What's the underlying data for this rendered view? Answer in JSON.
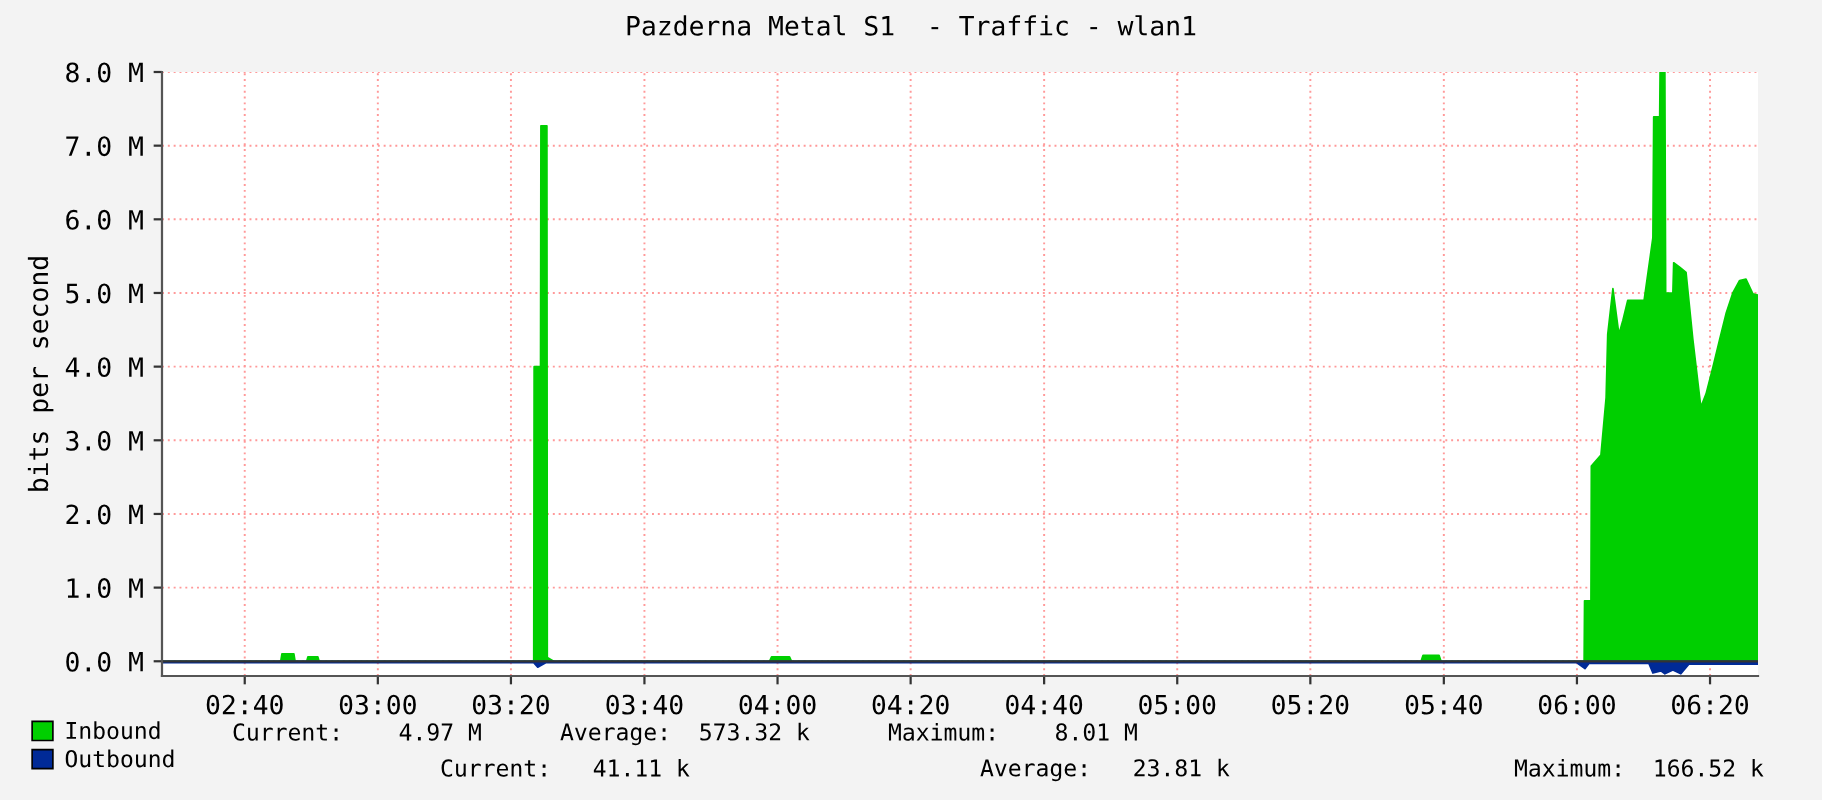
{
  "chart_data": {
    "type": "area",
    "title": "Pazderna Metal S1  - Traffic - wlan1",
    "ylabel": "bits per second",
    "xlim": [
      2.46,
      6.453
    ],
    "ylim": [
      -0.2,
      8.0
    ],
    "xticks": [
      {
        "value": 2.667,
        "label": "02:40"
      },
      {
        "value": 3,
        "label": "03:00"
      },
      {
        "value": 3.333,
        "label": "03:20"
      },
      {
        "value": 3.667,
        "label": "03:40"
      },
      {
        "value": 4,
        "label": "04:00"
      },
      {
        "value": 4.333,
        "label": "04:20"
      },
      {
        "value": 4.667,
        "label": "04:40"
      },
      {
        "value": 5,
        "label": "05:00"
      },
      {
        "value": 5.333,
        "label": "05:20"
      },
      {
        "value": 5.667,
        "label": "05:40"
      },
      {
        "value": 6,
        "label": "06:00"
      },
      {
        "value": 6.333,
        "label": "06:20"
      }
    ],
    "yticks": [
      {
        "value": 0,
        "label": "0.0 M"
      },
      {
        "value": 1,
        "label": "1.0 M"
      },
      {
        "value": 2,
        "label": "2.0 M"
      },
      {
        "value": 3,
        "label": "3.0 M"
      },
      {
        "value": 4,
        "label": "4.0 M"
      },
      {
        "value": 5,
        "label": "5.0 M"
      },
      {
        "value": 6,
        "label": "6.0 M"
      },
      {
        "value": 7,
        "label": "7.0 M"
      },
      {
        "value": 8,
        "label": "8.0 M"
      }
    ],
    "grid": true,
    "legend": "bottom left",
    "series": [
      {
        "name": "Inbound",
        "color": "#00cf00",
        "x": [
          2.46,
          2.757,
          2.76,
          2.79,
          2.793,
          2.822,
          2.825,
          2.85,
          2.853,
          3.39,
          3.391,
          3.407,
          3.408,
          3.423,
          3.424,
          3.44,
          3.98,
          3.985,
          4.03,
          4.035,
          5.61,
          5.615,
          5.655,
          5.66,
          6.018,
          6.019,
          6.035,
          6.036,
          6.06,
          6.073,
          6.077,
          6.09,
          6.105,
          6.115,
          6.127,
          6.168,
          6.19,
          6.192,
          6.207,
          6.208,
          6.22,
          6.222,
          6.24,
          6.242,
          6.257,
          6.273,
          6.29,
          6.31,
          6.323,
          6.34,
          6.357,
          6.373,
          6.39,
          6.407,
          6.423,
          6.44,
          6.453
        ],
        "values": [
          0,
          0,
          0.1,
          0.1,
          0,
          0,
          0.06,
          0.06,
          0,
          0,
          4.0,
          4.0,
          7.27,
          7.27,
          0.05,
          0,
          0,
          0.06,
          0.06,
          0,
          0,
          0.08,
          0.08,
          0,
          0,
          0.82,
          0.82,
          2.65,
          2.8,
          3.58,
          4.44,
          5.06,
          4.44,
          4.63,
          4.9,
          4.9,
          5.75,
          7.39,
          7.39,
          8.0,
          8.0,
          5.0,
          5.0,
          5.41,
          5.35,
          5.28,
          4.37,
          3.45,
          3.63,
          3.99,
          4.37,
          4.72,
          5.0,
          5.17,
          5.19,
          4.99,
          4.97
        ]
      },
      {
        "name": "Outbound",
        "color": "#002a97",
        "x": [
          2.46,
          3.39,
          3.4,
          3.42,
          6.0,
          6.02,
          6.03,
          6.18,
          6.19,
          6.21,
          6.22,
          6.24,
          6.26,
          6.28,
          6.453
        ],
        "values": [
          -0.02,
          -0.02,
          -0.08,
          -0.02,
          -0.02,
          -0.1,
          -0.03,
          -0.03,
          -0.16,
          -0.13,
          -0.17,
          -0.12,
          -0.17,
          -0.04,
          -0.04
        ]
      }
    ],
    "annotations": [
      "Current:    4.97 M",
      "Average:  573.32 k",
      "Maximum:    8.01 M",
      "Current:   41.11 k",
      "Average:   23.81 k",
      "Maximum:  166.52 k"
    ]
  }
}
